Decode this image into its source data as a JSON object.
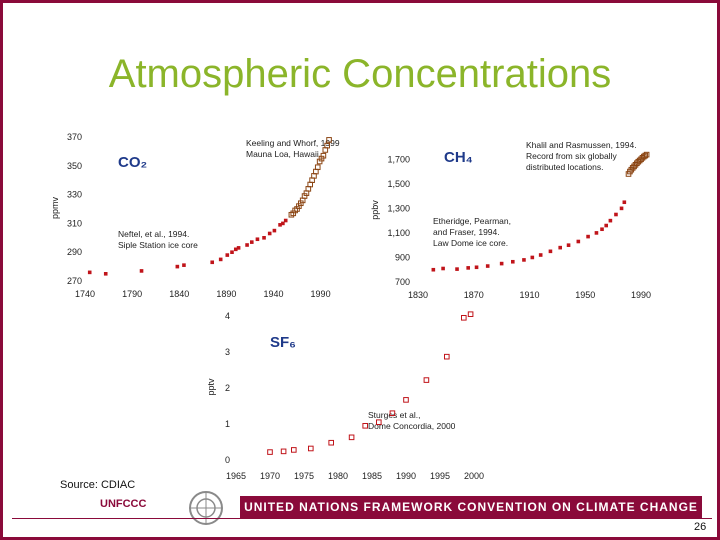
{
  "title": "Atmospheric Concentrations",
  "source_label": "Source:  CDIAC",
  "footer": {
    "banner_text": "UNITED NATIONS FRAMEWORK CONVENTION ON CLIMATE CHANGE",
    "logo_text": "UNFCCC",
    "page_number": "26"
  },
  "colors": {
    "frame": "#8a0a3a",
    "title": "#8bb52a",
    "series_red": "#c0141a",
    "series_brown": "#8b4513",
    "label_blue": "#1f3a8a"
  },
  "chart_data": [
    {
      "type": "scatter",
      "gas_label": "CO₂",
      "ylabel": "ppmv",
      "xlim": [
        1740,
        2000
      ],
      "ylim": [
        270,
        370
      ],
      "x_ticks": [
        1740,
        1790,
        1840,
        1890,
        1940,
        1990
      ],
      "y_ticks": [
        270,
        290,
        310,
        330,
        350,
        370
      ],
      "annotations": [
        {
          "lines": [
            "Keeling and Whorf, 1999",
            "Mauna Loa, Hawaii"
          ]
        },
        {
          "lines": [
            "Neftel, et al., 1994.",
            "Siple Station ice core"
          ]
        }
      ],
      "series": [
        {
          "name": "Siple Station ice core",
          "marker": "filled",
          "color": "#c0141a",
          "x": [
            1745,
            1762,
            1800,
            1838,
            1845,
            1875,
            1884,
            1891,
            1896,
            1900,
            1903,
            1912,
            1917,
            1923,
            1930,
            1936,
            1941,
            1947,
            1950,
            1953
          ],
          "y": [
            276,
            275,
            277,
            280,
            281,
            283,
            285,
            288,
            290,
            292,
            293,
            295,
            297,
            299,
            300,
            303,
            305,
            309,
            310,
            312
          ]
        },
        {
          "name": "Mauna Loa, Hawaii",
          "marker": "open",
          "color": "#8b4513",
          "x": [
            1959,
            1961,
            1963,
            1965,
            1967,
            1969,
            1971,
            1973,
            1975,
            1977,
            1979,
            1981,
            1983,
            1985,
            1987,
            1989,
            1991,
            1993,
            1995,
            1997,
            1999
          ],
          "y": [
            316,
            317,
            319,
            320,
            322,
            324,
            326,
            329,
            331,
            334,
            337,
            340,
            343,
            346,
            349,
            353,
            355,
            357,
            361,
            364,
            368
          ]
        }
      ]
    },
    {
      "type": "scatter",
      "gas_label": "CH₄",
      "ylabel": "ppbv",
      "xlim": [
        1830,
        2000
      ],
      "ylim": [
        700,
        1800
      ],
      "x_ticks": [
        1830,
        1870,
        1910,
        1950,
        1990
      ],
      "y_ticks": [
        700,
        900,
        1100,
        1300,
        1500,
        1700
      ],
      "y_tick_labels": [
        "700",
        "900",
        "1,100",
        "1,300",
        "1,500",
        "1,700"
      ],
      "annotations": [
        {
          "lines": [
            "Khalil and Rasmussen, 1994.",
            "Record from six globally",
            "distributed locations."
          ]
        },
        {
          "lines": [
            "Etheridge, Pearman,",
            "and Fraser, 1994.",
            "Law Dome ice core."
          ]
        }
      ],
      "series": [
        {
          "name": "Law Dome ice core",
          "marker": "filled",
          "color": "#c0141a",
          "x": [
            1841,
            1848,
            1858,
            1866,
            1872,
            1880,
            1890,
            1898,
            1906,
            1912,
            1918,
            1925,
            1932,
            1938,
            1945,
            1952,
            1958,
            1962,
            1965,
            1968,
            1972,
            1976,
            1978
          ],
          "y": [
            800,
            810,
            805,
            815,
            820,
            830,
            850,
            865,
            880,
            900,
            920,
            950,
            980,
            1000,
            1030,
            1070,
            1100,
            1130,
            1160,
            1200,
            1250,
            1300,
            1350
          ]
        },
        {
          "name": "Six globally distributed locations",
          "marker": "open",
          "color": "#8b4513",
          "x": [
            1981,
            1982,
            1983,
            1984,
            1985,
            1986,
            1987,
            1988,
            1989,
            1990,
            1991,
            1992,
            1993,
            1994
          ],
          "y": [
            1580,
            1600,
            1615,
            1630,
            1642,
            1655,
            1668,
            1680,
            1690,
            1700,
            1712,
            1722,
            1730,
            1738
          ]
        }
      ]
    },
    {
      "type": "scatter",
      "gas_label": "SF₆",
      "ylabel": "pptv",
      "xlim": [
        1965,
        2000
      ],
      "ylim": [
        0,
        4
      ],
      "x_ticks": [
        1965,
        1970,
        1975,
        1980,
        1985,
        1990,
        1995,
        2000
      ],
      "y_ticks": [
        0,
        1,
        2,
        3,
        4
      ],
      "annotations": [
        {
          "lines": [
            "Sturges et al.,",
            "Dome Concordia, 2000"
          ]
        }
      ],
      "series": [
        {
          "name": "Dome Concordia",
          "marker": "open",
          "color": "#c0141a",
          "x": [
            1970,
            1972,
            1973.5,
            1976,
            1979,
            1982,
            1984,
            1986,
            1988,
            1990,
            1993,
            1996,
            1998.5,
            1999.5
          ],
          "y": [
            0.22,
            0.24,
            0.28,
            0.32,
            0.48,
            0.63,
            0.95,
            1.05,
            1.3,
            1.67,
            2.22,
            2.87,
            3.95,
            4.05
          ]
        }
      ]
    }
  ]
}
